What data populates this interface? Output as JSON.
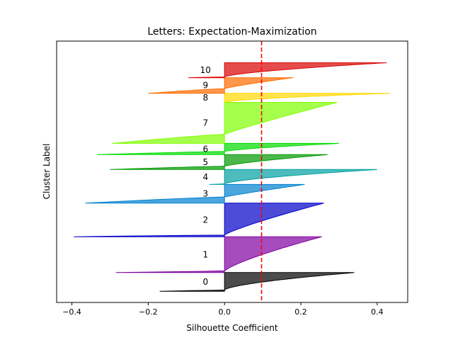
{
  "chart_data": {
    "type": "area",
    "title": "Letters: Expectation-Maximization",
    "xlabel": "Silhouette Coefficient",
    "ylabel": "Cluster Label",
    "xlim": [
      -0.44,
      0.48
    ],
    "ylim": [
      0,
      350
    ],
    "x_ticks": [
      -0.4,
      -0.2,
      0.0,
      0.2,
      0.4
    ],
    "x_tick_labels": [
      "−0.4",
      "−0.2",
      "0.0",
      "0.2",
      "0.4"
    ],
    "average_silhouette": 0.097,
    "grid": false,
    "legend": "none",
    "clusters": [
      {
        "label": "0",
        "color": "#000000",
        "y_lower": 15,
        "y_upper": 40,
        "max": 0.34,
        "min": -0.17,
        "neg_frac": 0.06,
        "curve": 1.6
      },
      {
        "label": "1",
        "color": "#8000a0",
        "y_lower": 40,
        "y_upper": 88,
        "max": 0.255,
        "min": -0.285,
        "neg_frac": 0.04,
        "curve": 1.3
      },
      {
        "label": "2",
        "color": "#0000c8",
        "y_lower": 88,
        "y_upper": 133,
        "max": 0.26,
        "min": -0.395,
        "neg_frac": 0.05,
        "curve": 1.2
      },
      {
        "label": "3",
        "color": "#0080d0",
        "y_lower": 133,
        "y_upper": 158,
        "max": 0.21,
        "min": -0.365,
        "neg_frac": 0.33,
        "curve": 1.1
      },
      {
        "label": "4",
        "color": "#00a0a0",
        "y_lower": 158,
        "y_upper": 178,
        "max": 0.4,
        "min": -0.04,
        "neg_frac": 0.04,
        "curve": 1.5
      },
      {
        "label": "5",
        "color": "#009a00",
        "y_lower": 178,
        "y_upper": 198,
        "max": 0.27,
        "min": -0.3,
        "neg_frac": 0.22,
        "curve": 1.3
      },
      {
        "label": "6",
        "color": "#00dc00",
        "y_lower": 198,
        "y_upper": 213,
        "max": 0.3,
        "min": -0.335,
        "neg_frac": 0.28,
        "curve": 1.4
      },
      {
        "label": "7",
        "color": "#80ff00",
        "y_lower": 213,
        "y_upper": 268,
        "max": 0.295,
        "min": -0.295,
        "neg_frac": 0.22,
        "curve": 1.1
      },
      {
        "label": "8",
        "color": "#ffd800",
        "y_lower": 268,
        "y_upper": 280,
        "max": 0.435,
        "min": 0.0,
        "neg_frac": 0.0,
        "curve": 1.6
      },
      {
        "label": "9",
        "color": "#ff6a00",
        "y_lower": 280,
        "y_upper": 301,
        "max": 0.18,
        "min": -0.2,
        "neg_frac": 0.3,
        "curve": 1.2
      },
      {
        "label": "10",
        "color": "#d80000",
        "y_lower": 301,
        "y_upper": 321,
        "max": 0.425,
        "min": -0.095,
        "neg_frac": 0.05,
        "curve": 1.5
      }
    ]
  }
}
